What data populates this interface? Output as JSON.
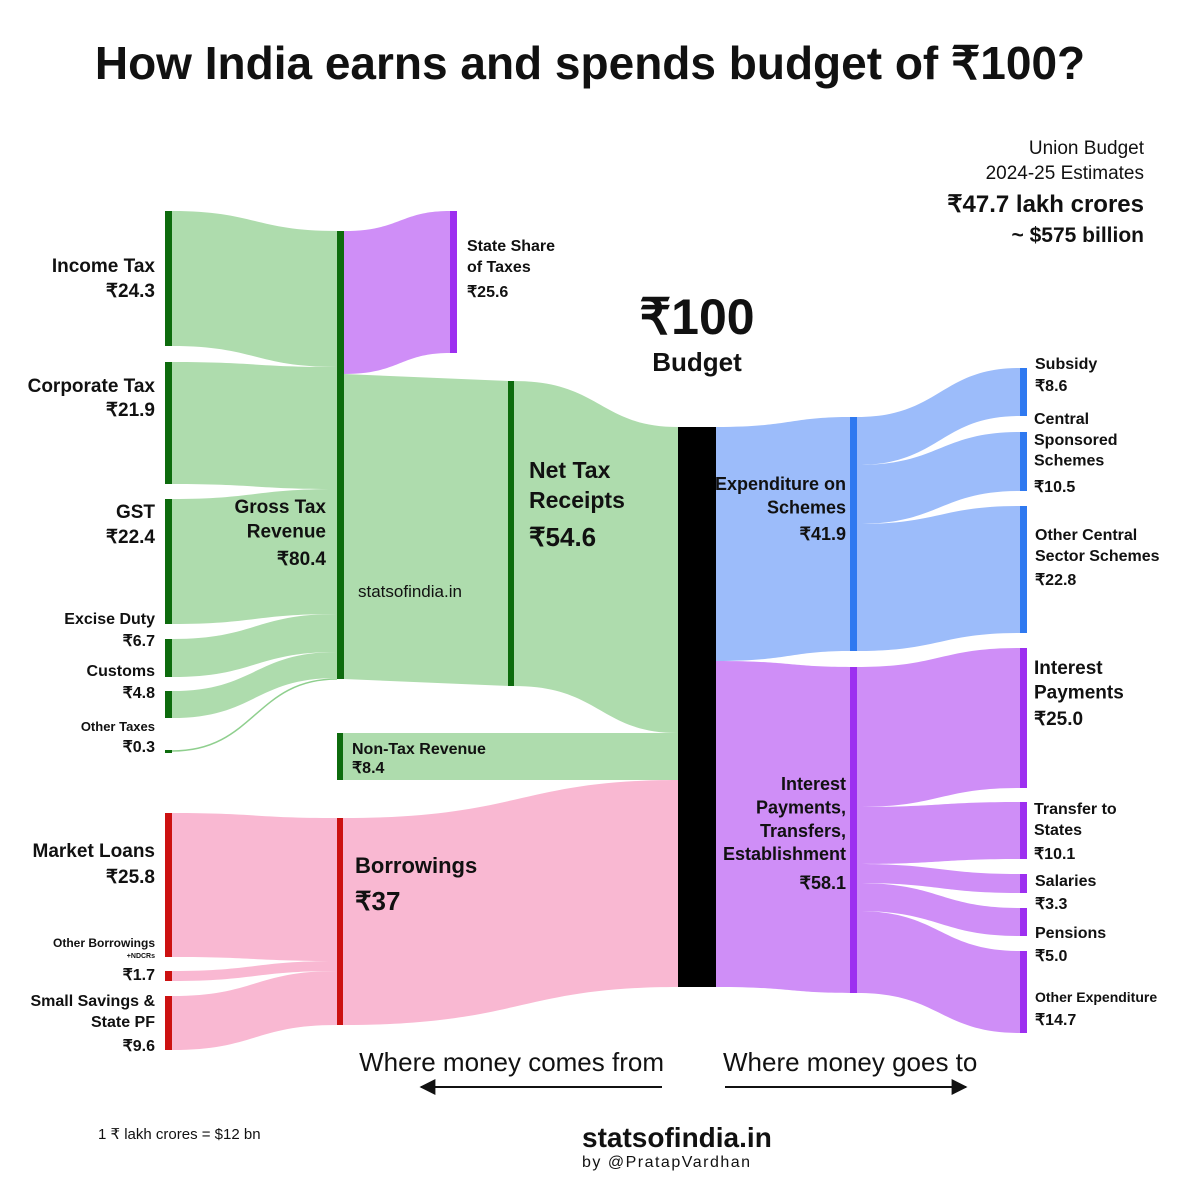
{
  "title": "How India earns and spends budget of ₹100?",
  "header": {
    "line1": "Union Budget",
    "line2": "2024-25 Estimates",
    "total_inr": "₹47.7 lakh crores",
    "total_usd": "~ $575 billion"
  },
  "center": {
    "value": "₹100",
    "label": "Budget"
  },
  "watermark": "statsofindia.in",
  "directions": {
    "left": "Where money comes from",
    "right": "Where money goes to"
  },
  "footer": {
    "conversion": "1 ₹ lakh crores = $12 bn",
    "brand": "statsofindia.in",
    "byline": "by @PratapVardhan"
  },
  "colors": {
    "tax_green": "#aedcad",
    "tax_green_bar": "#0d6b0d",
    "state_purple": "#cf8ef7",
    "state_purple_bar": "#9d2ff0",
    "borrow_pink": "#f9b8d2",
    "borrow_red_bar": "#cc1111",
    "scheme_blue": "#9cbcfa",
    "scheme_blue_bar": "#2f79f0",
    "budget_black": "#000000"
  },
  "sources": [
    {
      "name": "Income Tax",
      "value": "₹24.3"
    },
    {
      "name": "Corporate Tax",
      "value": "₹21.9"
    },
    {
      "name": "GST",
      "value": "₹22.4"
    },
    {
      "name": "Excise Duty",
      "value": "₹6.7"
    },
    {
      "name": "Customs",
      "value": "₹4.8"
    },
    {
      "name": "Other Taxes",
      "value": "₹0.3"
    },
    {
      "name": "Market Loans",
      "value": "₹25.8"
    },
    {
      "name": "Other Borrowings",
      "note": "+NDCRs",
      "value": "₹1.7"
    },
    {
      "name": "Small Savings & State PF",
      "value": "₹9.6"
    }
  ],
  "intermediate": {
    "gross_tax": {
      "name": "Gross Tax Revenue",
      "value": "₹80.4"
    },
    "state_share": {
      "name": "State Share of Taxes",
      "value": "₹25.6"
    },
    "net_tax": {
      "name": "Net Tax Receipts",
      "value": "₹54.6"
    },
    "non_tax": {
      "name": "Non-Tax Revenue",
      "value": "₹8.4"
    },
    "borrowings": {
      "name": "Borrowings",
      "value": "₹37"
    }
  },
  "spending": {
    "schemes": {
      "name": "Expenditure on Schemes",
      "value": "₹41.9"
    },
    "other": {
      "name": "Interest Payments, Transfers, Establishment",
      "value": "₹58.1"
    }
  },
  "uses": [
    {
      "name": "Subsidy",
      "value": "₹8.6"
    },
    {
      "name": "Central Sponsored Schemes",
      "value": "₹10.5"
    },
    {
      "name": "Other Central Sector Schemes",
      "value": "₹22.8"
    },
    {
      "name": "Interest Payments",
      "value": "₹25.0"
    },
    {
      "name": "Transfer to States",
      "value": "₹10.1"
    },
    {
      "name": "Salaries",
      "value": "₹3.3"
    },
    {
      "name": "Pensions",
      "value": "₹5.0"
    },
    {
      "name": "Other Expenditure",
      "value": "₹14.7"
    }
  ]
}
